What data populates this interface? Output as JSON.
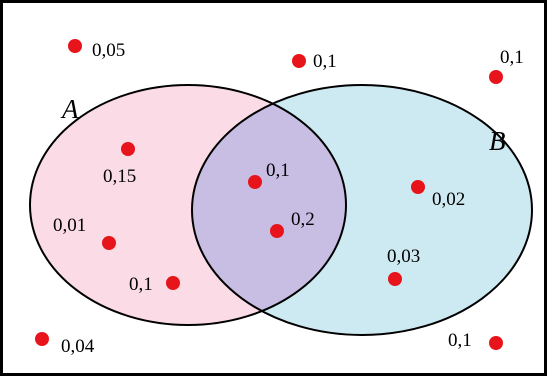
{
  "colors": {
    "background": "#ffffff",
    "frame": "#000000",
    "set_a_fill": "#fadbe6",
    "set_b_fill": "#cde9f1",
    "intersection_fill": "#c8bde3",
    "outline": "#000000",
    "point": "#e8141b"
  },
  "sets": [
    {
      "id": "A",
      "label": "A"
    },
    {
      "id": "B",
      "label": "B"
    }
  ],
  "points": [
    {
      "id": "p1",
      "region": "outside",
      "label": "0,05"
    },
    {
      "id": "p2",
      "region": "outside",
      "label": "0,1"
    },
    {
      "id": "p3",
      "region": "outside",
      "label": "0,1"
    },
    {
      "id": "p4",
      "region": "A only",
      "label": "0,15"
    },
    {
      "id": "p5",
      "region": "A only",
      "label": "0,01"
    },
    {
      "id": "p6",
      "region": "A only",
      "label": "0,1"
    },
    {
      "id": "p7",
      "region": "A and B",
      "label": "0,1"
    },
    {
      "id": "p8",
      "region": "A and B",
      "label": "0,2"
    },
    {
      "id": "p9",
      "region": "B only",
      "label": "0,02"
    },
    {
      "id": "p10",
      "region": "B only",
      "label": "0,03"
    },
    {
      "id": "p11",
      "region": "outside",
      "label": "0,04"
    },
    {
      "id": "p12",
      "region": "outside",
      "label": "0,1"
    }
  ]
}
